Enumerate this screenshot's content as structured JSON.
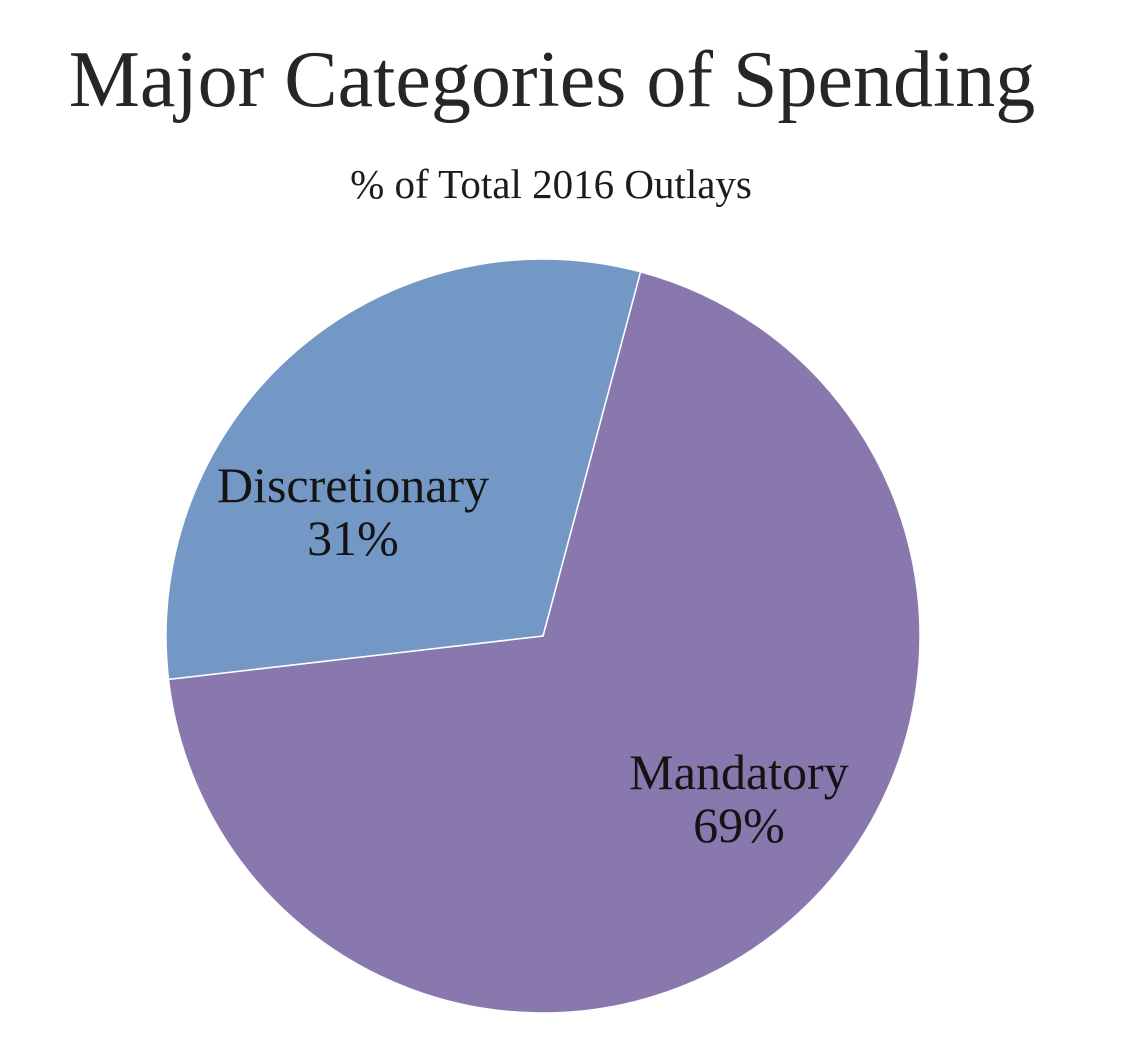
{
  "chart_data": {
    "type": "pie",
    "title": "Major Categories of Spending",
    "subtitle": "% of Total 2016 Outlays",
    "categories": [
      "Mandatory",
      "Discretionary"
    ],
    "values": [
      69,
      31
    ],
    "unit": "percent of total 2016 outlays",
    "legend": "none",
    "labels_position": "inside",
    "start_angle_deg": 15,
    "background": "#FFFFFF",
    "text_color": "#141414",
    "slice_border_color": "#FFFFFF",
    "slices": [
      {
        "label": "Mandatory",
        "value": 69,
        "pct_text": "69%",
        "color": "#8878AE"
      },
      {
        "label": "Discretionary",
        "value": 31,
        "pct_text": "31%",
        "color": "#7498C5"
      }
    ]
  }
}
